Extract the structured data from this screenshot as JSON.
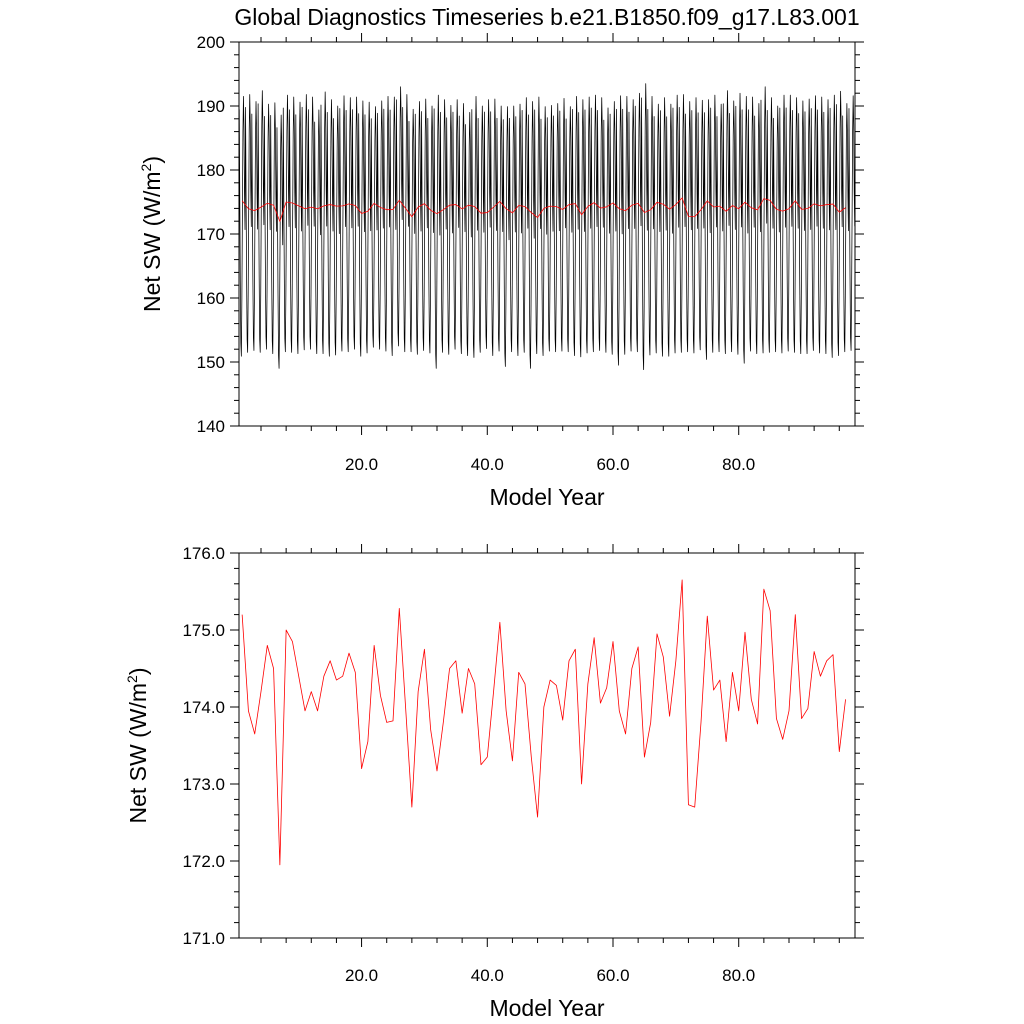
{
  "title": "Global Diagnostics Timeseries b.e21.B1850.f09_g17.L83.001",
  "colors": {
    "monthly": "#000000",
    "annual": "#ff0000",
    "axes": "#000000"
  },
  "chart_data": [
    {
      "type": "line",
      "title": "Global Diagnostics Timeseries b.e21.B1850.f09_g17.L83.001",
      "xlabel": "Model Year",
      "ylabel": "Net SW (W/m",
      "ylabel_sup": "2",
      "ylabel_end": ")",
      "xlim": [
        0.5,
        98.5
      ],
      "ylim": [
        140,
        200
      ],
      "yticks": [
        140,
        150,
        160,
        170,
        180,
        190,
        200
      ],
      "ytick_labels": [
        "140",
        "150",
        "160",
        "170",
        "180",
        "190",
        "200"
      ],
      "xticks": [
        20,
        40,
        60,
        80
      ],
      "xtick_labels": [
        "20.0",
        "40.0",
        "60.0",
        "80.0"
      ],
      "grid": false,
      "legend": "none",
      "series": [
        {
          "kind": "monthly",
          "color": "#000000",
          "start_year": 1,
          "months_per_year": 12,
          "n_years": 98,
          "monthly_climatology": [
            189.5,
            176.0,
            163.0,
            153.5,
            151.5,
            160.5,
            173.5,
            186.0,
            191.5,
            187.0,
            176.5,
            171.0
          ],
          "yearly_peak": [
            191.5,
            191.8,
            190.7,
            192.4,
            190.3,
            190.5,
            188.6,
            191.7,
            191.4,
            190.6,
            191.8,
            191.4,
            189.4,
            192.2,
            191.0,
            190.0,
            191.6,
            191.3,
            191.4,
            190.8,
            190.6,
            189.9,
            190.8,
            191.5,
            191.4,
            193.0,
            191.8,
            189.5,
            190.7,
            191.1,
            190.0,
            191.7,
            191.0,
            190.1,
            191.0,
            190.4,
            189.0,
            191.5,
            190.0,
            191.0,
            191.1,
            190.0,
            189.9,
            190.0,
            190.3,
            191.3,
            190.7,
            191.4,
            189.9,
            190.1,
            190.4,
            191.2,
            189.9,
            191.5,
            191.0,
            191.4,
            191.7,
            191.3,
            189.7,
            190.7,
            191.6,
            191.5,
            191.0,
            192.0,
            193.5,
            191.5,
            190.3,
            191.3,
            190.3,
            191.7,
            191.8,
            190.7,
            191.3,
            190.9,
            191.0,
            191.7,
            190.3,
            192.4,
            190.8,
            192.0,
            191.5,
            191.4,
            190.4,
            193.0,
            191.3,
            190.0,
            191.7,
            191.7,
            191.3,
            190.8,
            191.1,
            191.6,
            191.4,
            191.0,
            191.7,
            192.3,
            190.4,
            191.6
          ],
          "yearly_trough": [
            150.9,
            151.5,
            151.8,
            151.5,
            152.0,
            151.3,
            149.0,
            151.6,
            151.5,
            151.3,
            151.9,
            152.0,
            151.3,
            151.3,
            150.9,
            151.1,
            151.7,
            151.6,
            152.0,
            150.9,
            151.4,
            152.3,
            152.0,
            151.7,
            151.0,
            152.5,
            151.6,
            151.6,
            151.2,
            151.8,
            151.4,
            149.0,
            151.5,
            151.2,
            152.0,
            151.3,
            151.0,
            150.7,
            151.5,
            152.1,
            151.0,
            151.7,
            149.3,
            151.6,
            151.0,
            151.5,
            149.0,
            151.3,
            151.0,
            151.7,
            151.6,
            151.7,
            151.6,
            151.0,
            150.8,
            151.4,
            151.6,
            151.8,
            151.5,
            151.2,
            149.5,
            151.2,
            151.7,
            151.6,
            148.8,
            151.1,
            151.4,
            150.9,
            150.9,
            151.4,
            151.5,
            151.6,
            151.4,
            151.9,
            150.4,
            151.5,
            151.6,
            151.3,
            151.6,
            151.2,
            149.8,
            151.7,
            151.3,
            151.4,
            151.5,
            151.6,
            151.4,
            151.7,
            151.5,
            151.3,
            151.3,
            151.8,
            151.4,
            151.3,
            150.7,
            151.0,
            151.6,
            151.8
          ]
        },
        {
          "kind": "annual",
          "color": "#ff0000",
          "x_start": 1,
          "values": [
            175.2,
            173.95,
            173.65,
            174.2,
            174.8,
            174.5,
            171.95,
            175.0,
            174.85,
            174.4,
            173.95,
            174.2,
            173.95,
            174.4,
            174.6,
            174.35,
            174.4,
            174.7,
            174.45,
            173.2,
            173.55,
            174.8,
            174.15,
            173.8,
            173.82,
            175.28,
            174.0,
            172.7,
            174.2,
            174.75,
            173.7,
            173.17,
            173.8,
            174.5,
            174.6,
            173.92,
            174.5,
            174.3,
            173.25,
            173.35,
            174.2,
            175.1,
            173.95,
            173.3,
            174.45,
            174.3,
            173.35,
            172.57,
            174.0,
            174.35,
            174.28,
            173.83,
            174.6,
            174.75,
            173.0,
            174.3,
            174.9,
            174.05,
            174.25,
            174.85,
            173.95,
            173.65,
            174.5,
            174.78,
            173.35,
            173.8,
            174.95,
            174.65,
            173.88,
            174.6,
            175.65,
            172.73,
            172.7,
            173.8,
            175.18,
            174.22,
            174.35,
            173.55,
            174.45,
            173.95,
            174.97,
            174.1,
            173.78,
            175.53,
            175.25,
            173.85,
            173.58,
            173.95,
            175.2,
            173.85,
            173.98,
            174.72,
            174.4,
            174.6,
            174.68,
            173.42,
            174.1
          ]
        }
      ]
    },
    {
      "type": "line",
      "title": "",
      "xlabel": "Model Year",
      "ylabel": "Net SW (W/m",
      "ylabel_sup": "2",
      "ylabel_end": ")",
      "xlim": [
        0.5,
        98.5
      ],
      "ylim": [
        171.0,
        176.0
      ],
      "yticks": [
        171,
        172,
        173,
        174,
        175,
        176
      ],
      "ytick_labels": [
        "171.0",
        "172.0",
        "173.0",
        "174.0",
        "175.0",
        "176.0"
      ],
      "xticks": [
        20,
        40,
        60,
        80
      ],
      "xtick_labels": [
        "20.0",
        "40.0",
        "60.0",
        "80.0"
      ],
      "grid": false,
      "legend": "none",
      "series": [
        {
          "kind": "annual",
          "color": "#ff0000",
          "x_start": 1,
          "values": [
            175.2,
            173.95,
            173.65,
            174.2,
            174.8,
            174.5,
            171.95,
            175.0,
            174.85,
            174.4,
            173.95,
            174.2,
            173.95,
            174.4,
            174.6,
            174.35,
            174.4,
            174.7,
            174.45,
            173.2,
            173.55,
            174.8,
            174.15,
            173.8,
            173.82,
            175.28,
            174.0,
            172.7,
            174.2,
            174.75,
            173.7,
            173.17,
            173.8,
            174.5,
            174.6,
            173.92,
            174.5,
            174.3,
            173.25,
            173.35,
            174.2,
            175.1,
            173.95,
            173.3,
            174.45,
            174.3,
            173.35,
            172.57,
            174.0,
            174.35,
            174.28,
            173.83,
            174.6,
            174.75,
            173.0,
            174.3,
            174.9,
            174.05,
            174.25,
            174.85,
            173.95,
            173.65,
            174.5,
            174.78,
            173.35,
            173.8,
            174.95,
            174.65,
            173.88,
            174.6,
            175.65,
            172.73,
            172.7,
            173.8,
            175.18,
            174.22,
            174.35,
            173.55,
            174.45,
            173.95,
            174.97,
            174.1,
            173.78,
            175.53,
            175.25,
            173.85,
            173.58,
            173.95,
            175.2,
            173.85,
            173.98,
            174.72,
            174.4,
            174.6,
            174.68,
            173.42,
            174.1
          ]
        }
      ]
    }
  ]
}
